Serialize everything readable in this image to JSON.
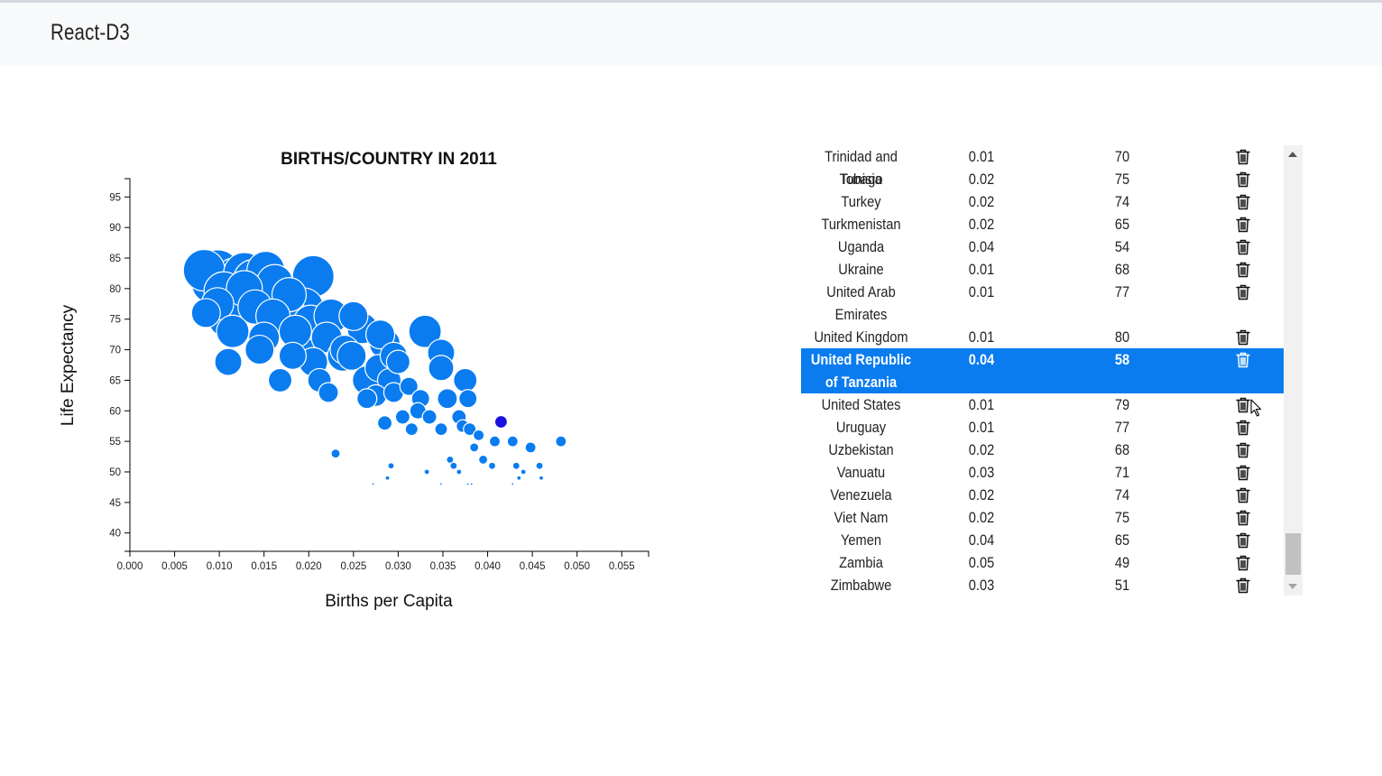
{
  "navbar": {
    "brand": "React-D3"
  },
  "colors": {
    "bubble": "#0a7cf0",
    "bubble_highlight": "#1a10e0",
    "selected_row": "#0a7cf0"
  },
  "table": {
    "delete_icon": "trash-icon",
    "selected_country": "United Republic of Tanzania",
    "rows": [
      {
        "name": "Trinidad and Tobago",
        "rate": "0.01",
        "life": "70"
      },
      {
        "name": "Tunisia",
        "rate": "0.02",
        "life": "75"
      },
      {
        "name": "Turkey",
        "rate": "0.02",
        "life": "74"
      },
      {
        "name": "Turkmenistan",
        "rate": "0.02",
        "life": "65"
      },
      {
        "name": "Uganda",
        "rate": "0.04",
        "life": "54"
      },
      {
        "name": "Ukraine",
        "rate": "0.01",
        "life": "68"
      },
      {
        "name": "United Arab Emirates",
        "rate": "0.01",
        "life": "77"
      },
      {
        "name": "United Kingdom",
        "rate": "0.01",
        "life": "80"
      },
      {
        "name": "United Republic of Tanzania",
        "rate": "0.04",
        "life": "58"
      },
      {
        "name": "United States",
        "rate": "0.01",
        "life": "79"
      },
      {
        "name": "Uruguay",
        "rate": "0.01",
        "life": "77"
      },
      {
        "name": "Uzbekistan",
        "rate": "0.02",
        "life": "68"
      },
      {
        "name": "Vanuatu",
        "rate": "0.03",
        "life": "71"
      },
      {
        "name": "Venezuela",
        "rate": "0.02",
        "life": "74"
      },
      {
        "name": "Viet Nam",
        "rate": "0.02",
        "life": "75"
      },
      {
        "name": "Yemen",
        "rate": "0.04",
        "life": "65"
      },
      {
        "name": "Zambia",
        "rate": "0.05",
        "life": "49"
      },
      {
        "name": "Zimbabwe",
        "rate": "0.03",
        "life": "51"
      }
    ]
  },
  "chart_data": {
    "type": "scatter",
    "title": "BIRTHS/COUNTRY IN 2011",
    "xlabel": "Births per Capita",
    "ylabel": "Life Expectancy",
    "xlim": [
      0,
      0.058
    ],
    "ylim": [
      37,
      98
    ],
    "x_ticks": [
      "0.000",
      "0.005",
      "0.010",
      "0.015",
      "0.020",
      "0.025",
      "0.030",
      "0.035",
      "0.040",
      "0.045",
      "0.050",
      "0.055"
    ],
    "y_ticks": [
      "40",
      "45",
      "50",
      "55",
      "60",
      "65",
      "70",
      "75",
      "80",
      "85",
      "90",
      "95"
    ],
    "highlighted_point": {
      "x": 0.0415,
      "y": 58.2,
      "r": 7
    },
    "points": [
      {
        "x": 0.0083,
        "y": 83,
        "r": 23
      },
      {
        "x": 0.0093,
        "y": 81,
        "r": 24
      },
      {
        "x": 0.0098,
        "y": 82.5,
        "r": 26
      },
      {
        "x": 0.0105,
        "y": 79.5,
        "r": 22
      },
      {
        "x": 0.0118,
        "y": 81.5,
        "r": 24
      },
      {
        "x": 0.0128,
        "y": 82.5,
        "r": 23
      },
      {
        "x": 0.0138,
        "y": 81.5,
        "r": 22
      },
      {
        "x": 0.0152,
        "y": 83,
        "r": 21
      },
      {
        "x": 0.0162,
        "y": 81,
        "r": 20
      },
      {
        "x": 0.0178,
        "y": 79,
        "r": 19
      },
      {
        "x": 0.0205,
        "y": 82,
        "r": 23
      },
      {
        "x": 0.0085,
        "y": 76,
        "r": 16
      },
      {
        "x": 0.0098,
        "y": 77.5,
        "r": 18
      },
      {
        "x": 0.0108,
        "y": 75,
        "r": 20
      },
      {
        "x": 0.0115,
        "y": 73,
        "r": 18
      },
      {
        "x": 0.0128,
        "y": 80,
        "r": 20
      },
      {
        "x": 0.014,
        "y": 77,
        "r": 19
      },
      {
        "x": 0.015,
        "y": 72,
        "r": 17
      },
      {
        "x": 0.016,
        "y": 75.5,
        "r": 19
      },
      {
        "x": 0.0175,
        "y": 76.5,
        "r": 20
      },
      {
        "x": 0.0195,
        "y": 77,
        "r": 21
      },
      {
        "x": 0.0185,
        "y": 73,
        "r": 18
      },
      {
        "x": 0.0198,
        "y": 71,
        "r": 19
      },
      {
        "x": 0.0202,
        "y": 74.5,
        "r": 19
      },
      {
        "x": 0.0225,
        "y": 75.5,
        "r": 19
      },
      {
        "x": 0.025,
        "y": 75.5,
        "r": 16
      },
      {
        "x": 0.022,
        "y": 72,
        "r": 17
      },
      {
        "x": 0.024,
        "y": 70,
        "r": 16
      },
      {
        "x": 0.026,
        "y": 73.5,
        "r": 17
      },
      {
        "x": 0.028,
        "y": 72.5,
        "r": 16
      },
      {
        "x": 0.033,
        "y": 73,
        "r": 18
      },
      {
        "x": 0.011,
        "y": 68,
        "r": 15
      },
      {
        "x": 0.0145,
        "y": 70,
        "r": 16
      },
      {
        "x": 0.0168,
        "y": 65,
        "r": 13
      },
      {
        "x": 0.0182,
        "y": 69,
        "r": 15
      },
      {
        "x": 0.0205,
        "y": 68,
        "r": 16
      },
      {
        "x": 0.0212,
        "y": 65,
        "r": 13
      },
      {
        "x": 0.0222,
        "y": 63,
        "r": 11
      },
      {
        "x": 0.0238,
        "y": 69,
        "r": 17
      },
      {
        "x": 0.0248,
        "y": 69,
        "r": 16
      },
      {
        "x": 0.0265,
        "y": 65,
        "r": 16
      },
      {
        "x": 0.0285,
        "y": 71,
        "r": 17
      },
      {
        "x": 0.0278,
        "y": 67,
        "r": 15
      },
      {
        "x": 0.0295,
        "y": 69,
        "r": 15
      },
      {
        "x": 0.0265,
        "y": 62,
        "r": 11
      },
      {
        "x": 0.0275,
        "y": 62.5,
        "r": 12
      },
      {
        "x": 0.029,
        "y": 65,
        "r": 13
      },
      {
        "x": 0.0295,
        "y": 63,
        "r": 11
      },
      {
        "x": 0.03,
        "y": 68,
        "r": 13
      },
      {
        "x": 0.0312,
        "y": 64,
        "r": 10
      },
      {
        "x": 0.0325,
        "y": 62,
        "r": 10
      },
      {
        "x": 0.0348,
        "y": 69.5,
        "r": 15
      },
      {
        "x": 0.0348,
        "y": 67,
        "r": 14
      },
      {
        "x": 0.0375,
        "y": 65,
        "r": 13
      },
      {
        "x": 0.0355,
        "y": 62,
        "r": 11
      },
      {
        "x": 0.0378,
        "y": 62,
        "r": 10
      },
      {
        "x": 0.0285,
        "y": 58,
        "r": 8
      },
      {
        "x": 0.0305,
        "y": 59,
        "r": 8
      },
      {
        "x": 0.0315,
        "y": 57,
        "r": 7
      },
      {
        "x": 0.0322,
        "y": 60,
        "r": 9
      },
      {
        "x": 0.0335,
        "y": 59,
        "r": 8
      },
      {
        "x": 0.0348,
        "y": 57,
        "r": 7
      },
      {
        "x": 0.0368,
        "y": 59,
        "r": 8
      },
      {
        "x": 0.0372,
        "y": 57.5,
        "r": 7
      },
      {
        "x": 0.038,
        "y": 57,
        "r": 7
      },
      {
        "x": 0.039,
        "y": 56,
        "r": 6
      },
      {
        "x": 0.0408,
        "y": 55,
        "r": 6
      },
      {
        "x": 0.0428,
        "y": 55,
        "r": 6
      },
      {
        "x": 0.0448,
        "y": 54,
        "r": 6
      },
      {
        "x": 0.0482,
        "y": 55,
        "r": 6
      },
      {
        "x": 0.0385,
        "y": 54,
        "r": 5
      },
      {
        "x": 0.0395,
        "y": 52,
        "r": 5
      },
      {
        "x": 0.023,
        "y": 53,
        "r": 5
      },
      {
        "x": 0.0358,
        "y": 52,
        "r": 4
      },
      {
        "x": 0.0362,
        "y": 51,
        "r": 4
      },
      {
        "x": 0.0405,
        "y": 51,
        "r": 4
      },
      {
        "x": 0.0432,
        "y": 51,
        "r": 4
      },
      {
        "x": 0.0458,
        "y": 51,
        "r": 4
      },
      {
        "x": 0.0292,
        "y": 51,
        "r": 3.5
      },
      {
        "x": 0.0332,
        "y": 50,
        "r": 3
      },
      {
        "x": 0.0368,
        "y": 50,
        "r": 3
      },
      {
        "x": 0.044,
        "y": 50,
        "r": 3
      },
      {
        "x": 0.0288,
        "y": 49,
        "r": 2.5
      },
      {
        "x": 0.0435,
        "y": 49,
        "r": 2.5
      },
      {
        "x": 0.046,
        "y": 49,
        "r": 2.5
      },
      {
        "x": 0.0272,
        "y": 48,
        "r": 1.5
      },
      {
        "x": 0.0348,
        "y": 48,
        "r": 1.5
      },
      {
        "x": 0.0378,
        "y": 48,
        "r": 1.5
      },
      {
        "x": 0.0382,
        "y": 48,
        "r": 1.5
      },
      {
        "x": 0.0428,
        "y": 48,
        "r": 1.5
      }
    ]
  }
}
